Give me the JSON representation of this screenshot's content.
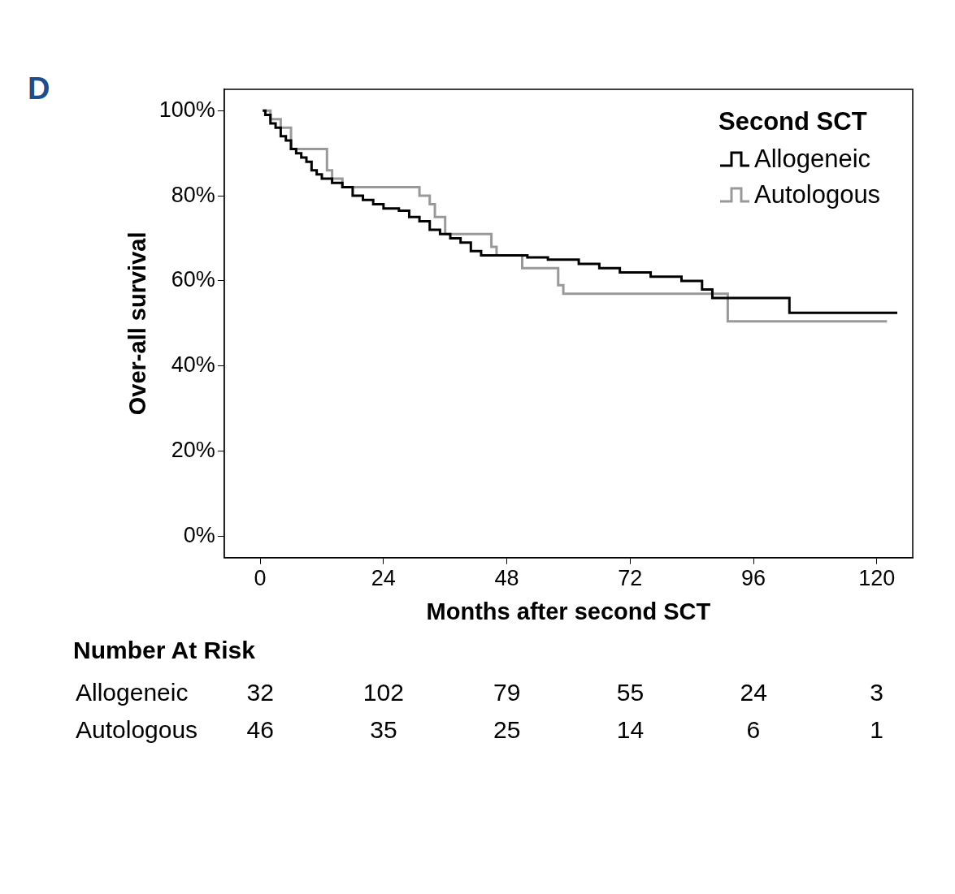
{
  "chart_data": {
    "type": "line",
    "panel_label": "D",
    "xlabel": "Months after second SCT",
    "ylabel": "Over-all survival",
    "xlim": [
      -7,
      127
    ],
    "xticks": [
      0,
      24,
      48,
      72,
      96,
      120
    ],
    "ylim": [
      -5,
      105
    ],
    "yticks": [
      {
        "value": 0,
        "label": "0%"
      },
      {
        "value": 20,
        "label": "20%"
      },
      {
        "value": 40,
        "label": "40%"
      },
      {
        "value": 60,
        "label": "60%"
      },
      {
        "value": 80,
        "label": "80%"
      },
      {
        "value": 100,
        "label": "100%"
      }
    ],
    "grid": false,
    "legend": "upper right",
    "legend_title": "Second SCT",
    "series": [
      {
        "name": "Allogeneic",
        "color": "#000000",
        "line_style": "step",
        "x": [
          0.5,
          1,
          2,
          3,
          4,
          5,
          6,
          7,
          8,
          9,
          10,
          11,
          12,
          14,
          16,
          18,
          20,
          22,
          24,
          27,
          29,
          31,
          33,
          35,
          37,
          39,
          41,
          43,
          48,
          52,
          56,
          62,
          66,
          70,
          76,
          82,
          86,
          88,
          103,
          124
        ],
        "values": [
          100,
          99,
          97,
          96,
          94,
          93,
          91,
          90,
          89,
          88,
          86,
          85,
          84,
          83,
          82,
          80,
          79,
          78,
          77,
          76.5,
          75,
          74,
          72,
          71,
          70,
          69,
          67,
          66,
          66,
          65.5,
          65,
          64,
          63,
          62,
          61,
          60,
          58,
          56,
          52.5,
          52.5
        ]
      },
      {
        "name": "Autologous",
        "color": "#999999",
        "line_style": "step",
        "x": [
          0.5,
          2,
          4,
          6,
          13,
          14,
          16,
          19,
          31,
          33,
          34,
          36,
          45,
          46,
          51,
          58,
          59,
          91,
          122
        ],
        "values": [
          100,
          98,
          96,
          91,
          86,
          84,
          82,
          82,
          80,
          78,
          75,
          71,
          68,
          66,
          63,
          59,
          57,
          50.5,
          50.5
        ]
      }
    ],
    "number_at_risk": {
      "title": "Number At Risk",
      "x": [
        0,
        24,
        48,
        72,
        96,
        120
      ],
      "series": [
        {
          "name": "Allogeneic",
          "values": [
            32,
            102,
            79,
            55,
            24,
            3
          ]
        },
        {
          "name": "Autologous",
          "values": [
            46,
            35,
            25,
            14,
            6,
            1
          ]
        }
      ]
    }
  }
}
